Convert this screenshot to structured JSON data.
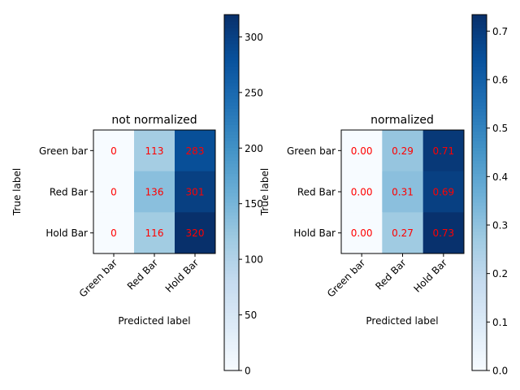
{
  "chart_data": [
    {
      "type": "heatmap",
      "title": "not normalized",
      "xlabel": "Predicted label",
      "ylabel": "True label",
      "x_categories": [
        "Green bar",
        "Red Bar",
        "Hold Bar"
      ],
      "y_categories": [
        "Green bar",
        "Red Bar",
        "Hold Bar"
      ],
      "values": [
        [
          0,
          113,
          283
        ],
        [
          0,
          136,
          301
        ],
        [
          0,
          116,
          320
        ]
      ],
      "cell_labels": [
        [
          "0",
          "113",
          "283"
        ],
        [
          "0",
          "136",
          "301"
        ],
        [
          "0",
          "116",
          "320"
        ]
      ],
      "colormap": "Blues",
      "annotation_color": "#ff0000",
      "vmin": 0,
      "vmax": 320,
      "colorbar_ticks": [
        0,
        50,
        100,
        150,
        200,
        250,
        300
      ],
      "colorbar_tick_labels": [
        "0",
        "50",
        "100",
        "150",
        "200",
        "250",
        "300"
      ]
    },
    {
      "type": "heatmap",
      "title": "normalized",
      "xlabel": "Predicted label",
      "ylabel": "True label",
      "x_categories": [
        "Green bar",
        "Red Bar",
        "Hold Bar"
      ],
      "y_categories": [
        "Green bar",
        "Red Bar",
        "Hold Bar"
      ],
      "values": [
        [
          0.0,
          0.29,
          0.71
        ],
        [
          0.0,
          0.31,
          0.69
        ],
        [
          0.0,
          0.27,
          0.73
        ]
      ],
      "cell_labels": [
        [
          "0.00",
          "0.29",
          "0.71"
        ],
        [
          "0.00",
          "0.31",
          "0.69"
        ],
        [
          "0.00",
          "0.27",
          "0.73"
        ]
      ],
      "colormap": "Blues",
      "annotation_color": "#ff0000",
      "vmin": 0,
      "vmax": 0.734,
      "colorbar_ticks": [
        0,
        0.1,
        0.2,
        0.3,
        0.4,
        0.5,
        0.6,
        0.7
      ],
      "colorbar_tick_labels": [
        "0.0",
        "0.1",
        "0.2",
        "0.3",
        "0.4",
        "0.5",
        "0.6",
        "0.7"
      ]
    }
  ]
}
